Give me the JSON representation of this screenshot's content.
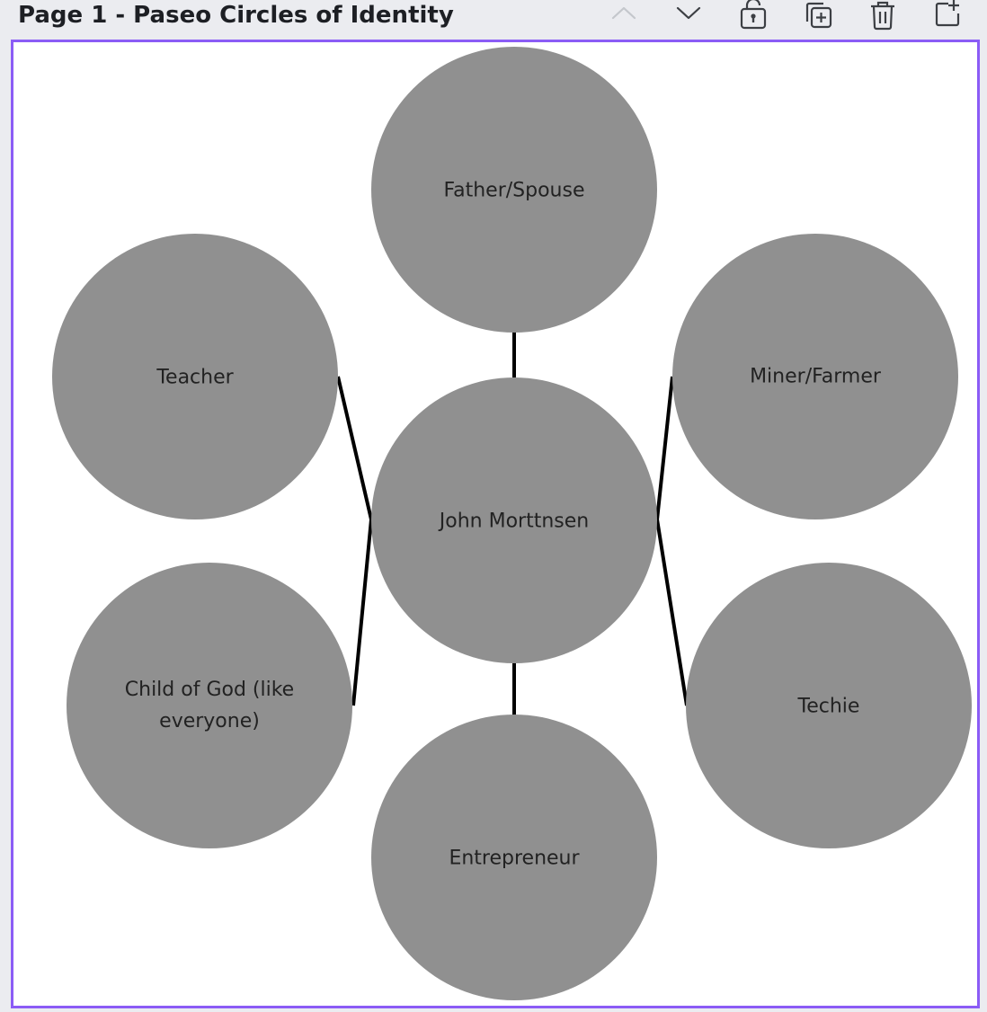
{
  "page": {
    "title": "Page 1 - Paseo Circles of Identity"
  },
  "toolbar": {
    "icons": [
      "chevron-up-icon",
      "chevron-down-icon",
      "unlock-icon",
      "duplicate-icon",
      "trash-icon",
      "add-page-icon"
    ]
  },
  "colors": {
    "selection_border": "#8b5cf6",
    "circle_fill": "#909090",
    "connector": "#000000"
  },
  "diagram": {
    "center": {
      "label": "John Morttnsen"
    },
    "nodes": {
      "top": {
        "label": "Father/Spouse"
      },
      "upper_left": {
        "label": "Teacher"
      },
      "upper_right": {
        "label": "Miner/Farmer"
      },
      "lower_left": {
        "label": "Child of God (like everyone)"
      },
      "lower_right": {
        "label": "Techie"
      },
      "bottom": {
        "label": "Entrepreneur"
      }
    }
  }
}
